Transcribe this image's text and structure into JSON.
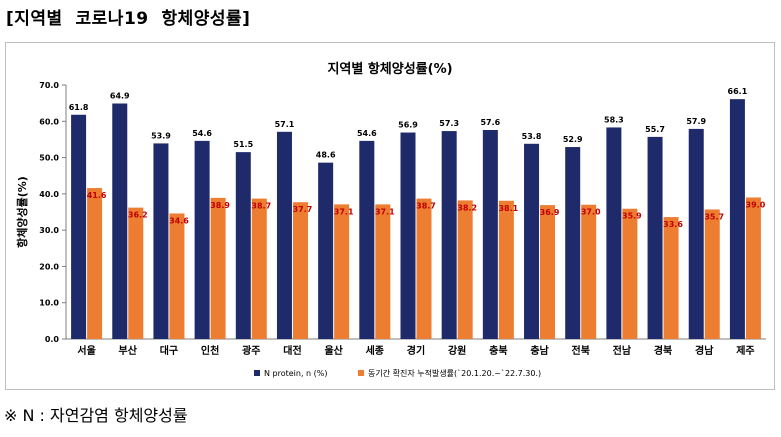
{
  "page": {
    "heading": "[지역별  코로나19  항체양성률]",
    "footnote": "※ N : 자연감염 항체양성률"
  },
  "colors": {
    "series1": "#1f2a6b",
    "series2": "#ed7d31",
    "label1": "#000000",
    "label2": "#c00000"
  },
  "chart_data": {
    "type": "bar",
    "title": "지역별 항체양성률(%)",
    "xlabel": "",
    "ylabel": "항체양성률(%)",
    "ylim": [
      0,
      70
    ],
    "yticks": [
      "0.0",
      "10.0",
      "20.0",
      "30.0",
      "40.0",
      "50.0",
      "60.0",
      "70.0"
    ],
    "grid": false,
    "legend_position": "bottom",
    "categories": [
      "서울",
      "부산",
      "대구",
      "인천",
      "광주",
      "대전",
      "울산",
      "세종",
      "경기",
      "강원",
      "충북",
      "충남",
      "전북",
      "전남",
      "경북",
      "경남",
      "제주"
    ],
    "series": [
      {
        "name": "N protein, n (%)",
        "values": [
          61.8,
          64.9,
          53.9,
          54.6,
          51.5,
          57.1,
          48.6,
          54.6,
          56.9,
          57.3,
          57.6,
          53.8,
          52.9,
          58.3,
          55.7,
          57.9,
          66.1
        ]
      },
      {
        "name": "동기간 확진자 누적발생률(`20.1.20.~`22.7.30.)",
        "values": [
          41.6,
          36.2,
          34.6,
          38.9,
          38.7,
          37.7,
          37.1,
          37.1,
          38.7,
          38.2,
          38.1,
          36.9,
          37.0,
          35.9,
          33.6,
          35.7,
          39.0
        ]
      }
    ]
  }
}
